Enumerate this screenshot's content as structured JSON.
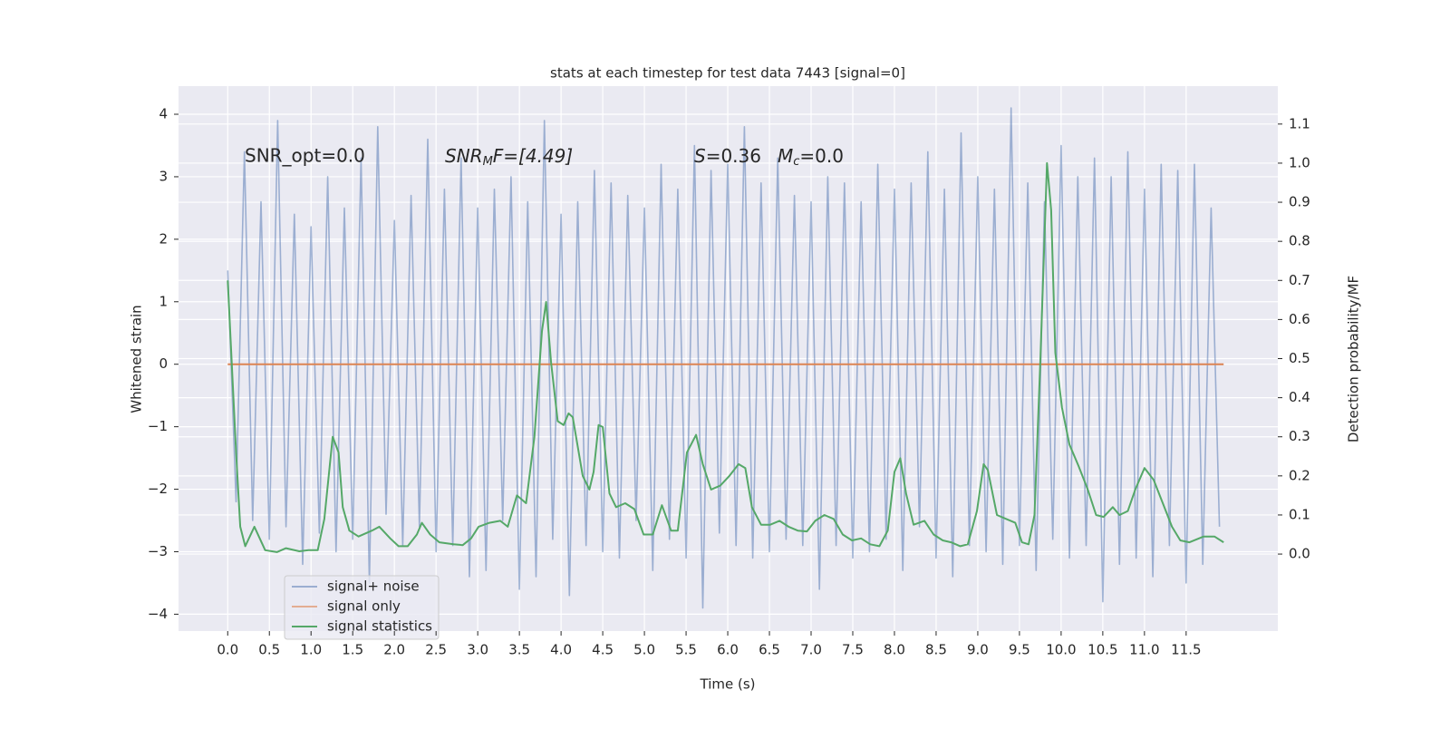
{
  "chart_data": {
    "type": "line",
    "title": "stats at each timestep for test data 7443 [signal=0]",
    "xlabel": "Time (s)",
    "ylabel": "Whitened strain",
    "y2label": "Detection probability/MF",
    "annotations": [
      "SNR_opt=0.0",
      {
        "base": "SNR",
        "sub": "M",
        "rest": "F=[4.49]"
      },
      {
        "base": "S",
        "rest": "=0.36"
      },
      {
        "base": "M",
        "sub": "c",
        "rest": "=0.0"
      }
    ],
    "xlim": [
      -0.59,
      12.6
    ],
    "ylim": [
      -4.27,
      4.45
    ],
    "y2lim": [
      -0.197,
      1.197
    ],
    "xticks": [
      {
        "value": 0,
        "label": "0.0"
      },
      0.5,
      {
        "value": 1,
        "label": "1.0"
      },
      1.5,
      {
        "value": 2,
        "label": "2.0"
      },
      2.5,
      {
        "value": 3,
        "label": "3.0"
      },
      3.5,
      {
        "value": 4,
        "label": "4.0"
      },
      4.5,
      {
        "value": 5,
        "label": "5.0"
      },
      5.5,
      {
        "value": 6,
        "label": "6.0"
      },
      6.5,
      {
        "value": 7,
        "label": "7.0"
      },
      7.5,
      {
        "value": 8,
        "label": "8.0"
      },
      8.5,
      {
        "value": 9,
        "label": "9.0"
      },
      9.5,
      {
        "value": 10,
        "label": "10.0"
      },
      10.5,
      {
        "value": 11,
        "label": "11.0"
      },
      11.5
    ],
    "yticks": [
      {
        "value": -4,
        "label": "−4"
      },
      {
        "value": -3,
        "label": "−3"
      },
      {
        "value": -2,
        "label": "−2"
      },
      {
        "value": -1,
        "label": "−1"
      },
      0,
      1,
      2,
      3,
      4
    ],
    "y2ticks": [
      {
        "value": 0,
        "label": "0.0"
      },
      0.1,
      0.2,
      0.3,
      0.4,
      0.5,
      0.6,
      0.7,
      0.8,
      0.9,
      {
        "value": 1,
        "label": "1.0"
      },
      1.1
    ],
    "grid": true,
    "legend": "lower left",
    "series": [
      {
        "name": "signal+ noise",
        "color": "#4c72b0",
        "x": [
          0,
          0.1,
          0.2,
          0.3,
          0.4,
          0.5,
          0.6,
          0.7,
          0.8,
          0.9,
          1,
          1.1,
          1.2,
          1.3,
          1.4,
          1.5,
          1.6,
          1.7,
          1.8,
          1.9,
          2,
          2.1,
          2.2,
          2.3,
          2.4,
          2.5,
          2.6,
          2.7,
          2.8,
          2.9,
          3,
          3.1,
          3.2,
          3.3,
          3.4,
          3.5,
          3.6,
          3.7,
          3.8,
          3.9,
          4,
          4.1,
          4.2,
          4.3,
          4.4,
          4.5,
          4.6,
          4.7,
          4.8,
          4.9,
          5,
          5.1,
          5.2,
          5.3,
          5.4,
          5.5,
          5.6,
          5.7,
          5.8,
          5.9,
          6,
          6.1,
          6.2,
          6.3,
          6.4,
          6.5,
          6.6,
          6.7,
          6.8,
          6.9,
          7,
          7.1,
          7.2,
          7.3,
          7.4,
          7.5,
          7.6,
          7.7,
          7.8,
          7.9,
          8,
          8.1,
          8.2,
          8.3,
          8.4,
          8.5,
          8.6,
          8.7,
          8.8,
          8.9,
          9,
          9.1,
          9.2,
          9.3,
          9.4,
          9.5,
          9.6,
          9.7,
          9.8,
          9.9,
          10,
          10.1,
          10.2,
          10.3,
          10.4,
          10.5,
          10.6,
          10.7,
          10.8,
          10.9,
          11,
          11.1,
          11.2,
          11.3,
          11.4,
          11.5,
          11.6,
          11.7,
          11.8,
          11.9
        ],
        "values": [
          1.5,
          -2.2,
          3.4,
          -2.5,
          2.6,
          -2.8,
          3.9,
          -2.6,
          2.4,
          -3.2,
          2.2,
          -2.7,
          3.0,
          -3.0,
          2.5,
          -2.8,
          3.3,
          -3.5,
          3.8,
          -2.4,
          2.3,
          -2.9,
          2.7,
          -2.6,
          3.6,
          -3.0,
          2.8,
          -2.9,
          3.3,
          -3.4,
          2.5,
          -3.3,
          2.8,
          -2.5,
          3.0,
          -3.6,
          2.6,
          -3.4,
          3.9,
          -2.8,
          2.4,
          -3.7,
          2.6,
          -2.9,
          3.1,
          -3.0,
          2.9,
          -3.1,
          2.7,
          -2.5,
          2.5,
          -3.3,
          3.2,
          -2.8,
          2.8,
          -3.1,
          3.5,
          -3.9,
          3.1,
          -2.7,
          3.2,
          -2.9,
          3.8,
          -3.1,
          2.9,
          -3.0,
          3.3,
          -2.8,
          2.7,
          -2.9,
          2.6,
          -3.6,
          3.0,
          -2.9,
          2.9,
          -3.1,
          2.6,
          -3.0,
          3.2,
          -2.8,
          2.8,
          -3.3,
          2.9,
          -2.6,
          3.4,
          -3.1,
          2.8,
          -3.4,
          3.7,
          -2.9,
          3.0,
          -3.0,
          2.8,
          -3.2,
          4.1,
          -2.9,
          2.9,
          -3.3,
          2.6,
          -2.8,
          3.5,
          -3.1,
          3.0,
          -2.9,
          3.3,
          -3.8,
          3.0,
          -3.2,
          3.4,
          -3.1,
          2.8,
          -3.4,
          3.2,
          -2.9,
          3.1,
          -3.5,
          3.2,
          -3.2,
          2.5,
          -2.6
        ]
      },
      {
        "name": "signal only",
        "color": "#dd8452",
        "x": [
          0,
          11.95
        ],
        "values": [
          0,
          0
        ]
      },
      {
        "name": "signal statistics",
        "color": "#55a868",
        "axis": "y2",
        "x": [
          0,
          0.1,
          0.15,
          0.21,
          0.32,
          0.45,
          0.59,
          0.7,
          0.86,
          0.97,
          1.08,
          1.16,
          1.26,
          1.33,
          1.38,
          1.46,
          1.57,
          1.73,
          1.82,
          1.95,
          2.05,
          2.16,
          2.27,
          2.33,
          2.43,
          2.54,
          2.71,
          2.82,
          2.92,
          3.01,
          3.14,
          3.27,
          3.36,
          3.47,
          3.58,
          3.68,
          3.77,
          3.82,
          3.88,
          3.96,
          4.03,
          4.09,
          4.14,
          4.26,
          4.34,
          4.39,
          4.45,
          4.5,
          4.58,
          4.66,
          4.77,
          4.88,
          4.99,
          5.1,
          5.21,
          5.32,
          5.4,
          5.51,
          5.62,
          5.7,
          5.8,
          5.91,
          6.02,
          6.13,
          6.21,
          6.29,
          6.4,
          6.51,
          6.62,
          6.73,
          6.84,
          6.95,
          7.05,
          7.16,
          7.27,
          7.38,
          7.49,
          7.6,
          7.71,
          7.82,
          7.92,
          8.0,
          8.07,
          8.14,
          8.23,
          8.36,
          8.47,
          8.58,
          8.68,
          8.79,
          8.88,
          8.99,
          9.07,
          9.12,
          9.23,
          9.34,
          9.45,
          9.53,
          9.61,
          9.68,
          9.75,
          9.83,
          9.88,
          9.93,
          10.01,
          10.1,
          10.21,
          10.32,
          10.42,
          10.51,
          10.62,
          10.7,
          10.8,
          10.89,
          11.0,
          11.11,
          11.22,
          11.33,
          11.43,
          11.54,
          11.71,
          11.84,
          11.95
        ],
        "values": [
          0.7,
          0.26,
          0.07,
          0.02,
          0.07,
          0.01,
          0.005,
          0.015,
          0.007,
          0.01,
          0.01,
          0.09,
          0.3,
          0.26,
          0.12,
          0.06,
          0.045,
          0.06,
          0.07,
          0.04,
          0.02,
          0.02,
          0.05,
          0.08,
          0.05,
          0.03,
          0.025,
          0.023,
          0.04,
          0.07,
          0.08,
          0.085,
          0.07,
          0.15,
          0.13,
          0.3,
          0.57,
          0.645,
          0.49,
          0.34,
          0.33,
          0.36,
          0.35,
          0.2,
          0.165,
          0.21,
          0.33,
          0.325,
          0.155,
          0.12,
          0.13,
          0.115,
          0.05,
          0.05,
          0.125,
          0.06,
          0.06,
          0.26,
          0.305,
          0.23,
          0.165,
          0.175,
          0.2,
          0.23,
          0.22,
          0.12,
          0.075,
          0.075,
          0.085,
          0.07,
          0.06,
          0.058,
          0.085,
          0.1,
          0.09,
          0.05,
          0.035,
          0.04,
          0.025,
          0.02,
          0.06,
          0.21,
          0.245,
          0.155,
          0.075,
          0.085,
          0.05,
          0.035,
          0.03,
          0.02,
          0.025,
          0.11,
          0.23,
          0.215,
          0.1,
          0.09,
          0.08,
          0.03,
          0.025,
          0.1,
          0.49,
          1.0,
          0.88,
          0.515,
          0.375,
          0.28,
          0.225,
          0.165,
          0.1,
          0.095,
          0.12,
          0.1,
          0.11,
          0.165,
          0.22,
          0.19,
          0.13,
          0.07,
          0.035,
          0.03,
          0.045,
          0.045,
          0.03
        ]
      }
    ]
  }
}
